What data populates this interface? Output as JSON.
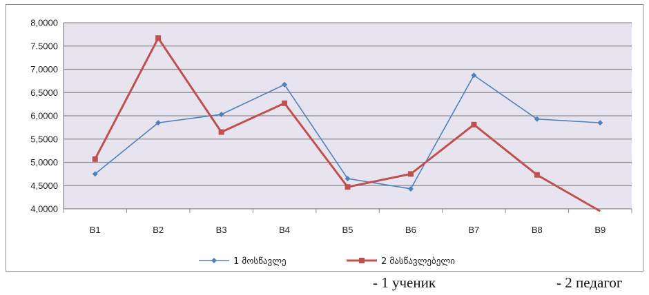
{
  "chart_data": {
    "type": "line",
    "categories": [
      "B1",
      "B2",
      "B3",
      "B4",
      "B5",
      "B6",
      "B7",
      "B8",
      "B9"
    ],
    "series": [
      {
        "name": "1 მოსწავლე",
        "color": "#4f81bd",
        "marker": "diamond",
        "values": [
          4.75,
          5.85,
          6.03,
          6.67,
          4.65,
          4.43,
          6.87,
          5.93,
          5.85
        ]
      },
      {
        "name": "2 მასწავლებელი",
        "color": "#c0504d",
        "marker": "square",
        "values": [
          5.07,
          7.67,
          5.65,
          6.27,
          4.47,
          4.75,
          5.81,
          4.73,
          3.95
        ]
      }
    ],
    "y_ticks": [
      "4,0000",
      "4,5000",
      "5,0000",
      "5,5000",
      "6,0000",
      "6,5000",
      "7,0000",
      "7.5000",
      "8,0000"
    ],
    "ylim": [
      4,
      8
    ],
    "grid": true,
    "legend": "bottom",
    "plot_background": "#e7e3ef",
    "gridline_color": "#8c8c8c"
  },
  "captions": [
    "- 1 ученик",
    "- 2 педагог"
  ]
}
